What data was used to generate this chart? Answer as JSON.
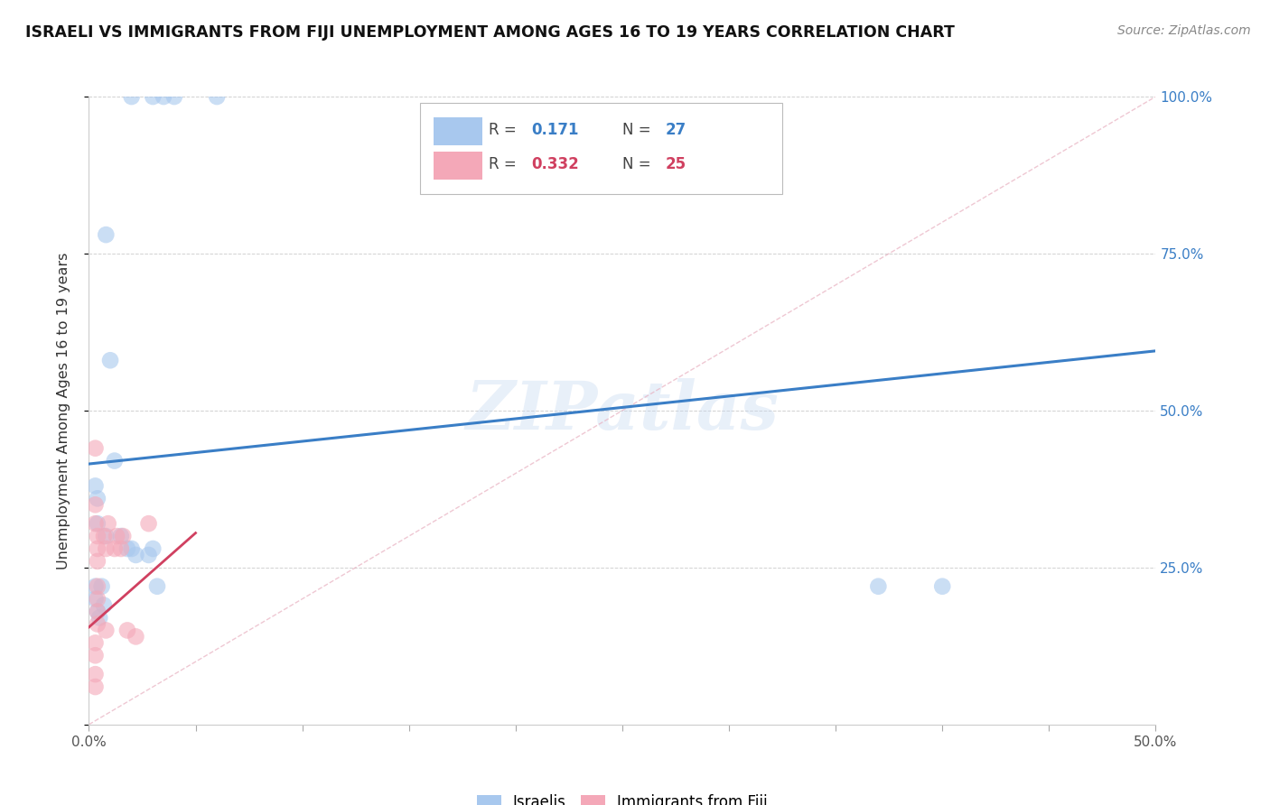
{
  "title": "ISRAELI VS IMMIGRANTS FROM FIJI UNEMPLOYMENT AMONG AGES 16 TO 19 YEARS CORRELATION CHART",
  "source": "Source: ZipAtlas.com",
  "ylabel": "Unemployment Among Ages 16 to 19 years",
  "xlim": [
    0.0,
    0.5
  ],
  "ylim": [
    0.0,
    1.0
  ],
  "xticks": [
    0.0,
    0.05,
    0.1,
    0.15,
    0.2,
    0.25,
    0.3,
    0.35,
    0.4,
    0.45,
    0.5
  ],
  "xtick_labels_show": {
    "0.0": "0.0%",
    "0.5": "50.0%"
  },
  "yticks": [
    0.0,
    0.25,
    0.5,
    0.75,
    1.0
  ],
  "ytick_labels": [
    "",
    "25.0%",
    "50.0%",
    "75.0%",
    "100.0%"
  ],
  "legend_R1": "0.171",
  "legend_N1": "27",
  "legend_R2": "0.332",
  "legend_N2": "25",
  "watermark": "ZIPatlas",
  "color_israeli": "#A8C8EE",
  "color_fiji": "#F4A8B8",
  "color_line_israeli": "#3A7EC6",
  "color_line_fiji": "#D04060",
  "color_diag": "#E8B0C0",
  "israelis_x": [
    0.02,
    0.03,
    0.035,
    0.04,
    0.06,
    0.008,
    0.01,
    0.012,
    0.003,
    0.004,
    0.004,
    0.008,
    0.015,
    0.018,
    0.02,
    0.022,
    0.028,
    0.03,
    0.032,
    0.003,
    0.006,
    0.37,
    0.4,
    0.003,
    0.004,
    0.005,
    0.007
  ],
  "israelis_y": [
    1.0,
    1.0,
    1.0,
    1.0,
    1.0,
    0.78,
    0.58,
    0.42,
    0.38,
    0.36,
    0.32,
    0.3,
    0.3,
    0.28,
    0.28,
    0.27,
    0.27,
    0.28,
    0.22,
    0.22,
    0.22,
    0.22,
    0.22,
    0.2,
    0.18,
    0.17,
    0.19
  ],
  "fiji_x": [
    0.003,
    0.003,
    0.003,
    0.004,
    0.004,
    0.004,
    0.004,
    0.004,
    0.004,
    0.007,
    0.008,
    0.009,
    0.012,
    0.013,
    0.015,
    0.016,
    0.018,
    0.022,
    0.028,
    0.003,
    0.003,
    0.003,
    0.003,
    0.008,
    0.004
  ],
  "fiji_y": [
    0.44,
    0.35,
    0.32,
    0.3,
    0.28,
    0.26,
    0.22,
    0.2,
    0.18,
    0.3,
    0.28,
    0.32,
    0.28,
    0.3,
    0.28,
    0.3,
    0.15,
    0.14,
    0.32,
    0.13,
    0.11,
    0.08,
    0.06,
    0.15,
    0.16
  ],
  "israeli_line_x": [
    0.0,
    0.5
  ],
  "israeli_line_y": [
    0.415,
    0.595
  ],
  "fiji_line_x": [
    0.0,
    0.05
  ],
  "fiji_line_y": [
    0.155,
    0.305
  ],
  "diag_line_x": [
    0.0,
    0.5
  ],
  "diag_line_y": [
    0.0,
    1.0
  ]
}
